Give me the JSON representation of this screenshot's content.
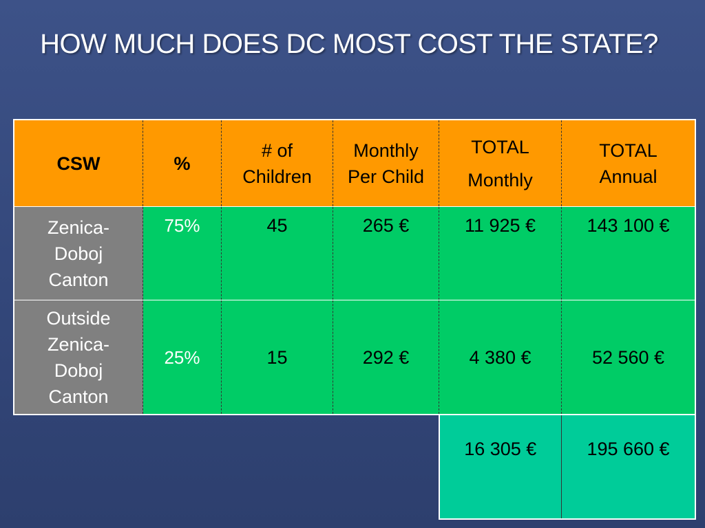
{
  "slide": {
    "title": "HOW MUCH DOES DC MOST COST THE STATE?"
  },
  "table": {
    "headers": {
      "csw": "CSW",
      "pct": "%",
      "children": "# of Children",
      "monthly_per_child": "Monthly Per Child",
      "total_monthly_1": "TOTAL",
      "total_monthly_2": "Monthly",
      "total_annual": "TOTAL Annual"
    },
    "rows": [
      {
        "csw": "Zenica-Doboj Canton",
        "pct": "75%",
        "children": "45",
        "monthly_per_child": "265 €",
        "total_monthly": "11 925 €",
        "total_annual": "143 100 €"
      },
      {
        "csw": "Outside Zenica-Doboj Canton",
        "pct": "25%",
        "children": "15",
        "monthly_per_child": "292 €",
        "total_monthly": "4 380 €",
        "total_annual": "52 560 €"
      }
    ],
    "totals": {
      "total_monthly": "16 305 €",
      "total_annual": "195 660 €"
    }
  },
  "colors": {
    "background": "#3d5288",
    "header": "#ff9900",
    "body_cells": "#00cc66",
    "csw_cells": "#808080",
    "totals": "#00cc99"
  }
}
